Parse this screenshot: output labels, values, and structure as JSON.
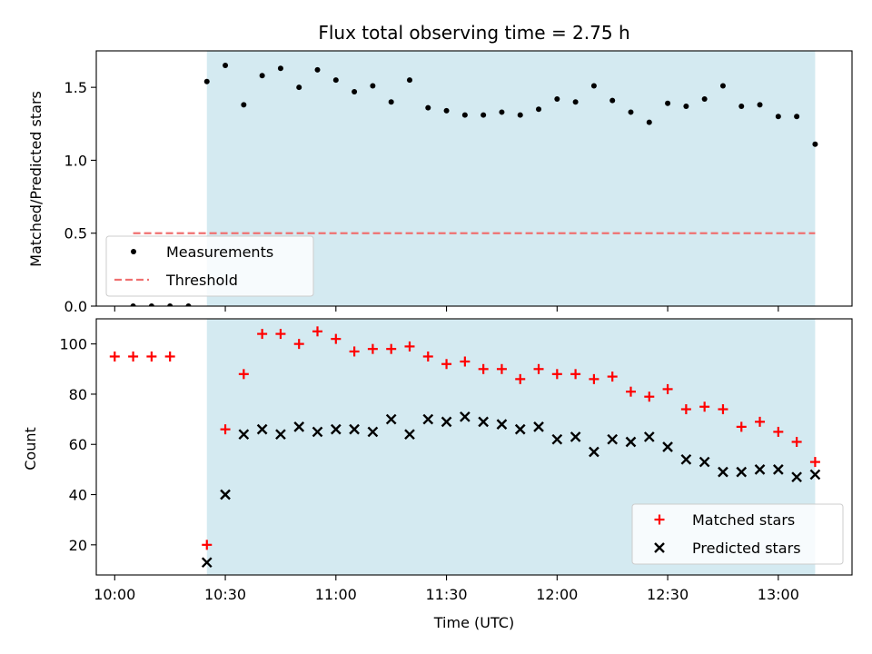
{
  "chart_data": [
    {
      "type": "scatter",
      "title": "Flux total observing time = 2.75 h",
      "xlabel": "",
      "ylabel": "Matched/Predicted stars",
      "ylim": [
        0,
        1.75
      ],
      "yticks": [
        0.0,
        0.5,
        1.0,
        1.5
      ],
      "ytick_labels": [
        "0.0",
        "0.5",
        "1.0",
        "1.5"
      ],
      "xlim": [
        "09:55",
        "13:20"
      ],
      "shaded_range": [
        "10:25",
        "13:10"
      ],
      "shade_color": "#d4eaf1",
      "legend": {
        "position": "bottom-left",
        "entries": [
          "Measurements",
          "Threshold"
        ]
      },
      "series": [
        {
          "name": "Measurements",
          "marker": "dot",
          "color": "#000000",
          "x": [
            "10:05",
            "10:10",
            "10:15",
            "10:20",
            "10:25",
            "10:30",
            "10:35",
            "10:40",
            "10:45",
            "10:50",
            "10:55",
            "11:00",
            "11:05",
            "11:10",
            "11:15",
            "11:20",
            "11:25",
            "11:30",
            "11:35",
            "11:40",
            "11:45",
            "11:50",
            "11:55",
            "12:00",
            "12:05",
            "12:10",
            "12:15",
            "12:20",
            "12:25",
            "12:30",
            "12:35",
            "12:40",
            "12:45",
            "12:50",
            "12:55",
            "13:00",
            "13:05",
            "13:10"
          ],
          "y": [
            0,
            0,
            0,
            0,
            1.54,
            1.65,
            1.38,
            1.58,
            1.63,
            1.5,
            1.62,
            1.55,
            1.47,
            1.51,
            1.4,
            1.55,
            1.36,
            1.34,
            1.31,
            1.31,
            1.33,
            1.31,
            1.35,
            1.42,
            1.4,
            1.51,
            1.41,
            1.33,
            1.26,
            1.39,
            1.37,
            1.42,
            1.51,
            1.37,
            1.38,
            1.3,
            1.3,
            1.11
          ]
        },
        {
          "name": "Threshold",
          "type": "line",
          "style": "dashed",
          "color": "#f07070",
          "x": [
            "10:05",
            "13:10"
          ],
          "y": [
            0.5,
            0.5
          ]
        }
      ]
    },
    {
      "type": "scatter",
      "title": "",
      "xlabel": "Time (UTC)",
      "ylabel": "Count",
      "ylim": [
        8,
        110
      ],
      "yticks": [
        20,
        40,
        60,
        80,
        100
      ],
      "ytick_labels": [
        "20",
        "40",
        "60",
        "80",
        "100"
      ],
      "xlim": [
        "09:55",
        "13:20"
      ],
      "xticks": [
        "10:00",
        "10:30",
        "11:00",
        "11:30",
        "12:00",
        "12:30",
        "13:00"
      ],
      "xtick_labels": [
        "10:00",
        "10:30",
        "11:00",
        "11:30",
        "12:00",
        "12:30",
        "13:00"
      ],
      "shaded_range": [
        "10:25",
        "13:10"
      ],
      "shade_color": "#d4eaf1",
      "legend": {
        "position": "bottom-right",
        "entries": [
          "Matched stars",
          "Predicted stars"
        ]
      },
      "series": [
        {
          "name": "Matched stars",
          "marker": "plus",
          "color": "#ff0000",
          "x": [
            "10:00",
            "10:05",
            "10:10",
            "10:15",
            "10:25",
            "10:30",
            "10:35",
            "10:40",
            "10:45",
            "10:50",
            "10:55",
            "11:00",
            "11:05",
            "11:10",
            "11:15",
            "11:20",
            "11:25",
            "11:30",
            "11:35",
            "11:40",
            "11:45",
            "11:50",
            "11:55",
            "12:00",
            "12:05",
            "12:10",
            "12:15",
            "12:20",
            "12:25",
            "12:30",
            "12:35",
            "12:40",
            "12:45",
            "12:50",
            "12:55",
            "13:00",
            "13:05",
            "13:10"
          ],
          "y": [
            95,
            95,
            95,
            95,
            20,
            66,
            88,
            104,
            104,
            100,
            105,
            102,
            97,
            98,
            98,
            99,
            95,
            92,
            93,
            90,
            90,
            86,
            90,
            88,
            88,
            86,
            87,
            81,
            79,
            82,
            74,
            75,
            74,
            67,
            69,
            65,
            61,
            53
          ]
        },
        {
          "name": "Predicted stars",
          "marker": "x",
          "color": "#000000",
          "x": [
            "10:25",
            "10:30",
            "10:35",
            "10:40",
            "10:45",
            "10:50",
            "10:55",
            "11:00",
            "11:05",
            "11:10",
            "11:15",
            "11:20",
            "11:25",
            "11:30",
            "11:35",
            "11:40",
            "11:45",
            "11:50",
            "11:55",
            "12:00",
            "12:05",
            "12:10",
            "12:15",
            "12:20",
            "12:25",
            "12:30",
            "12:35",
            "12:40",
            "12:45",
            "12:50",
            "12:55",
            "13:00",
            "13:05",
            "13:10"
          ],
          "y": [
            13,
            40,
            64,
            66,
            64,
            67,
            65,
            66,
            66,
            65,
            70,
            64,
            70,
            69,
            71,
            69,
            68,
            66,
            67,
            62,
            63,
            57,
            62,
            61,
            63,
            59,
            54,
            53,
            49,
            49,
            50,
            50,
            47,
            48
          ]
        }
      ]
    }
  ]
}
